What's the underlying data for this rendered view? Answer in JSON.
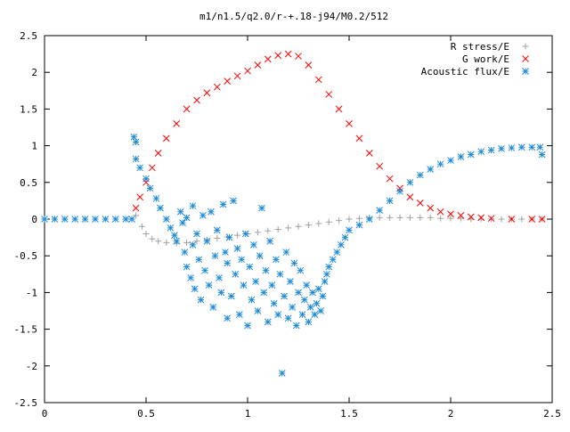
{
  "chart_data": {
    "type": "scatter",
    "title": "m1/n1.5/q2.0/r-+.18-j94/M0.2/512",
    "xlabel": "",
    "ylabel": "",
    "xlim": [
      0,
      2.5
    ],
    "ylim": [
      -2.5,
      2.5
    ],
    "grid": false,
    "legend_position": "top-right",
    "x_ticks": [
      "0",
      "0.5",
      "1",
      "1.5",
      "2",
      "2.5"
    ],
    "y_ticks": [
      "2.5",
      "2",
      "1.5",
      "1",
      "0.5",
      "0",
      "-0.5",
      "-1",
      "-1.5",
      "-2",
      "-2.5"
    ],
    "series": [
      {
        "name": "R stress/E",
        "color": "#a0a0a0",
        "marker": "plus",
        "points": [
          [
            0.45,
            0.05
          ],
          [
            0.48,
            -0.1
          ],
          [
            0.5,
            -0.2
          ],
          [
            0.53,
            -0.27
          ],
          [
            0.56,
            -0.3
          ],
          [
            0.6,
            -0.32
          ],
          [
            0.65,
            -0.33
          ],
          [
            0.7,
            -0.32
          ],
          [
            0.75,
            -0.3
          ],
          [
            0.8,
            -0.28
          ],
          [
            0.85,
            -0.26
          ],
          [
            0.9,
            -0.24
          ],
          [
            0.95,
            -0.22
          ],
          [
            1.0,
            -0.2
          ],
          [
            1.05,
            -0.18
          ],
          [
            1.1,
            -0.16
          ],
          [
            1.15,
            -0.14
          ],
          [
            1.2,
            -0.12
          ],
          [
            1.25,
            -0.1
          ],
          [
            1.3,
            -0.08
          ],
          [
            1.35,
            -0.06
          ],
          [
            1.4,
            -0.04
          ],
          [
            1.45,
            -0.02
          ],
          [
            1.5,
            0.0
          ],
          [
            1.55,
            0.01
          ],
          [
            1.6,
            0.02
          ],
          [
            1.65,
            0.02
          ],
          [
            1.7,
            0.02
          ],
          [
            1.75,
            0.02
          ],
          [
            1.8,
            0.02
          ],
          [
            1.85,
            0.02
          ],
          [
            1.9,
            0.02
          ],
          [
            1.95,
            0.01
          ],
          [
            2.0,
            0.01
          ],
          [
            2.05,
            0.01
          ],
          [
            2.1,
            0.0
          ],
          [
            2.15,
            0.0
          ],
          [
            2.2,
            0.0
          ],
          [
            2.25,
            0.0
          ],
          [
            2.3,
            0.0
          ],
          [
            2.35,
            0.0
          ],
          [
            2.4,
            0.0
          ],
          [
            2.45,
            0.0
          ]
        ]
      },
      {
        "name": "G work/E",
        "color": "#ff0000",
        "marker": "cross",
        "points": [
          [
            0.45,
            0.15
          ],
          [
            0.47,
            0.3
          ],
          [
            0.5,
            0.5
          ],
          [
            0.53,
            0.7
          ],
          [
            0.56,
            0.9
          ],
          [
            0.6,
            1.1
          ],
          [
            0.65,
            1.3
          ],
          [
            0.7,
            1.5
          ],
          [
            0.75,
            1.62
          ],
          [
            0.8,
            1.72
          ],
          [
            0.85,
            1.8
          ],
          [
            0.9,
            1.88
          ],
          [
            0.95,
            1.95
          ],
          [
            1.0,
            2.02
          ],
          [
            1.05,
            2.1
          ],
          [
            1.1,
            2.18
          ],
          [
            1.15,
            2.23
          ],
          [
            1.2,
            2.25
          ],
          [
            1.25,
            2.22
          ],
          [
            1.3,
            2.1
          ],
          [
            1.35,
            1.9
          ],
          [
            1.4,
            1.7
          ],
          [
            1.45,
            1.5
          ],
          [
            1.5,
            1.3
          ],
          [
            1.55,
            1.1
          ],
          [
            1.6,
            0.9
          ],
          [
            1.65,
            0.72
          ],
          [
            1.7,
            0.55
          ],
          [
            1.75,
            0.42
          ],
          [
            1.8,
            0.3
          ],
          [
            1.85,
            0.22
          ],
          [
            1.9,
            0.15
          ],
          [
            1.95,
            0.1
          ],
          [
            2.0,
            0.07
          ],
          [
            2.05,
            0.05
          ],
          [
            2.1,
            0.03
          ],
          [
            2.15,
            0.02
          ],
          [
            2.2,
            0.01
          ],
          [
            2.3,
            0.0
          ],
          [
            2.4,
            0.0
          ],
          [
            2.45,
            0.0
          ]
        ]
      },
      {
        "name": "Acoustic flux/E",
        "color": "#1e8ad8",
        "marker": "star",
        "points": [
          [
            0.0,
            0.0
          ],
          [
            0.05,
            0.0
          ],
          [
            0.1,
            0.0
          ],
          [
            0.15,
            0.0
          ],
          [
            0.2,
            0.0
          ],
          [
            0.25,
            0.0
          ],
          [
            0.3,
            0.0
          ],
          [
            0.35,
            0.0
          ],
          [
            0.4,
            0.0
          ],
          [
            0.43,
            0.0
          ],
          [
            0.44,
            1.12
          ],
          [
            0.45,
            1.05
          ],
          [
            0.45,
            0.82
          ],
          [
            0.47,
            0.7
          ],
          [
            0.5,
            0.55
          ],
          [
            0.52,
            0.42
          ],
          [
            0.55,
            0.28
          ],
          [
            0.57,
            0.15
          ],
          [
            0.6,
            0.0
          ],
          [
            0.62,
            -0.12
          ],
          [
            0.64,
            -0.22
          ],
          [
            0.65,
            -0.3
          ],
          [
            0.67,
            0.1
          ],
          [
            0.68,
            -0.05
          ],
          [
            0.69,
            -0.45
          ],
          [
            0.7,
            0.02
          ],
          [
            0.7,
            -0.65
          ],
          [
            0.72,
            -0.8
          ],
          [
            0.73,
            0.18
          ],
          [
            0.73,
            -0.35
          ],
          [
            0.74,
            -0.95
          ],
          [
            0.75,
            -0.2
          ],
          [
            0.76,
            -0.55
          ],
          [
            0.77,
            -1.1
          ],
          [
            0.78,
            0.05
          ],
          [
            0.79,
            -0.7
          ],
          [
            0.8,
            -0.3
          ],
          [
            0.81,
            -0.9
          ],
          [
            0.82,
            0.1
          ],
          [
            0.83,
            -1.2
          ],
          [
            0.84,
            -0.5
          ],
          [
            0.85,
            -0.15
          ],
          [
            0.86,
            -0.8
          ],
          [
            0.87,
            -1.0
          ],
          [
            0.88,
            0.2
          ],
          [
            0.89,
            -0.45
          ],
          [
            0.9,
            -1.35
          ],
          [
            0.9,
            -0.6
          ],
          [
            0.91,
            -0.25
          ],
          [
            0.92,
            -1.05
          ],
          [
            0.93,
            0.25
          ],
          [
            0.94,
            -0.75
          ],
          [
            0.95,
            -0.4
          ],
          [
            0.96,
            -1.3
          ],
          [
            0.97,
            -0.55
          ],
          [
            0.98,
            -0.9
          ],
          [
            0.99,
            -0.2
          ],
          [
            1.0,
            -1.45
          ],
          [
            1.01,
            -0.65
          ],
          [
            1.02,
            -1.1
          ],
          [
            1.03,
            -0.35
          ],
          [
            1.04,
            -0.85
          ],
          [
            1.05,
            -1.25
          ],
          [
            1.06,
            -0.5
          ],
          [
            1.07,
            0.15
          ],
          [
            1.08,
            -1.0
          ],
          [
            1.09,
            -0.7
          ],
          [
            1.1,
            -1.4
          ],
          [
            1.11,
            -0.3
          ],
          [
            1.12,
            -0.9
          ],
          [
            1.13,
            -1.15
          ],
          [
            1.14,
            -0.55
          ],
          [
            1.15,
            -1.3
          ],
          [
            1.16,
            -0.75
          ],
          [
            1.17,
            -2.1
          ],
          [
            1.18,
            -1.05
          ],
          [
            1.19,
            -0.45
          ],
          [
            1.2,
            -1.35
          ],
          [
            1.21,
            -0.85
          ],
          [
            1.22,
            -1.2
          ],
          [
            1.23,
            -0.6
          ],
          [
            1.24,
            -1.45
          ],
          [
            1.25,
            -1.0
          ],
          [
            1.26,
            -0.7
          ],
          [
            1.27,
            -1.3
          ],
          [
            1.28,
            -1.1
          ],
          [
            1.29,
            -0.9
          ],
          [
            1.3,
            -1.4
          ],
          [
            1.31,
            -1.2
          ],
          [
            1.32,
            -1.0
          ],
          [
            1.33,
            -1.3
          ],
          [
            1.34,
            -1.15
          ],
          [
            1.35,
            -0.95
          ],
          [
            1.36,
            -1.25
          ],
          [
            1.37,
            -1.05
          ],
          [
            1.38,
            -0.85
          ],
          [
            1.39,
            -0.75
          ],
          [
            1.4,
            -0.65
          ],
          [
            1.42,
            -0.55
          ],
          [
            1.44,
            -0.45
          ],
          [
            1.46,
            -0.35
          ],
          [
            1.48,
            -0.25
          ],
          [
            1.5,
            -0.15
          ],
          [
            1.55,
            -0.08
          ],
          [
            1.6,
            0.0
          ],
          [
            1.65,
            0.12
          ],
          [
            1.7,
            0.25
          ],
          [
            1.75,
            0.38
          ],
          [
            1.8,
            0.5
          ],
          [
            1.85,
            0.6
          ],
          [
            1.9,
            0.68
          ],
          [
            1.95,
            0.75
          ],
          [
            2.0,
            0.8
          ],
          [
            2.05,
            0.85
          ],
          [
            2.1,
            0.88
          ],
          [
            2.15,
            0.92
          ],
          [
            2.2,
            0.94
          ],
          [
            2.25,
            0.96
          ],
          [
            2.3,
            0.97
          ],
          [
            2.35,
            0.98
          ],
          [
            2.4,
            0.98
          ],
          [
            2.44,
            0.98
          ],
          [
            2.45,
            0.88
          ]
        ]
      }
    ]
  }
}
